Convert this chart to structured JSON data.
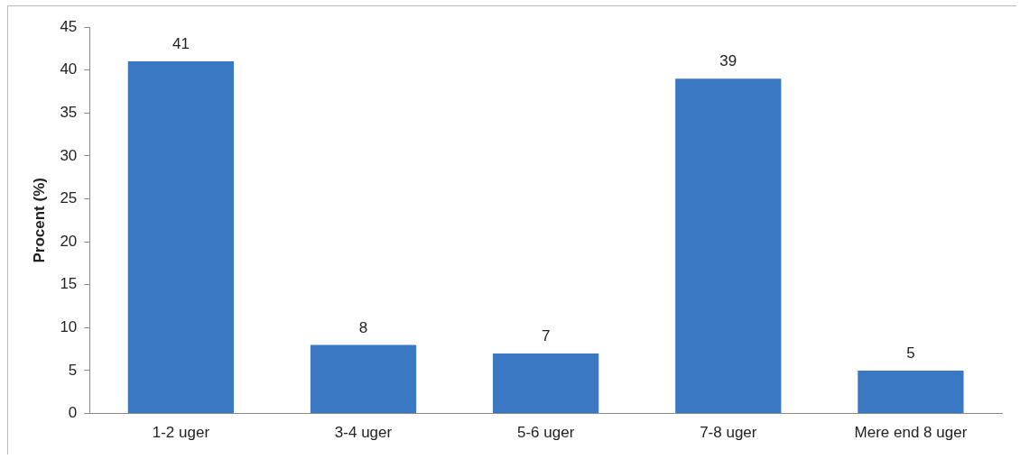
{
  "chart_data": {
    "type": "bar",
    "ylabel": "Procent (%)",
    "categories": [
      "1-2 uger",
      "3-4 uger",
      "5-6 uger",
      "7-8 uger",
      "Mere end 8 uger"
    ],
    "values": [
      41,
      8,
      7,
      39,
      5
    ],
    "color": "#3a78c4",
    "ylim": [
      0,
      45
    ],
    "yticks": [
      0,
      5,
      10,
      15,
      20,
      25,
      30,
      35,
      40,
      45
    ],
    "grid": false,
    "legend": false,
    "data_labels": true
  }
}
